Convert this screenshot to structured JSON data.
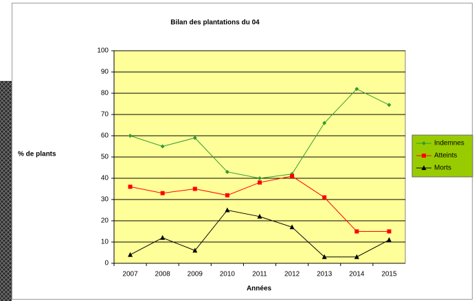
{
  "chart_data": {
    "type": "line",
    "title": "Bilan des plantations du 04",
    "x_label": "Années",
    "y_label": "% de plants",
    "categories": [
      "2007",
      "2008",
      "2009",
      "2010",
      "2011",
      "2012",
      "2013",
      "2014",
      "2015"
    ],
    "series": [
      {
        "name": "Indemnes",
        "color": "#339933",
        "marker": "diamond",
        "values": [
          60,
          55,
          59,
          43,
          40,
          42,
          66,
          82,
          74.5
        ]
      },
      {
        "name": "Atteints",
        "color": "#ff0000",
        "marker": "square",
        "values": [
          36,
          33,
          35,
          32,
          38,
          41,
          31,
          15,
          15
        ]
      },
      {
        "name": "Morts",
        "color": "#000000",
        "marker": "triangle",
        "values": [
          4,
          12,
          6,
          25,
          22,
          17,
          3,
          3,
          11
        ]
      }
    ],
    "ylim": [
      0,
      100
    ],
    "yticks": [
      0,
      10,
      20,
      30,
      40,
      50,
      60,
      70,
      80,
      90,
      100
    ],
    "grid": true,
    "legend": "right",
    "plot_background": "#ffff99",
    "legend_background": "#99cc00"
  }
}
